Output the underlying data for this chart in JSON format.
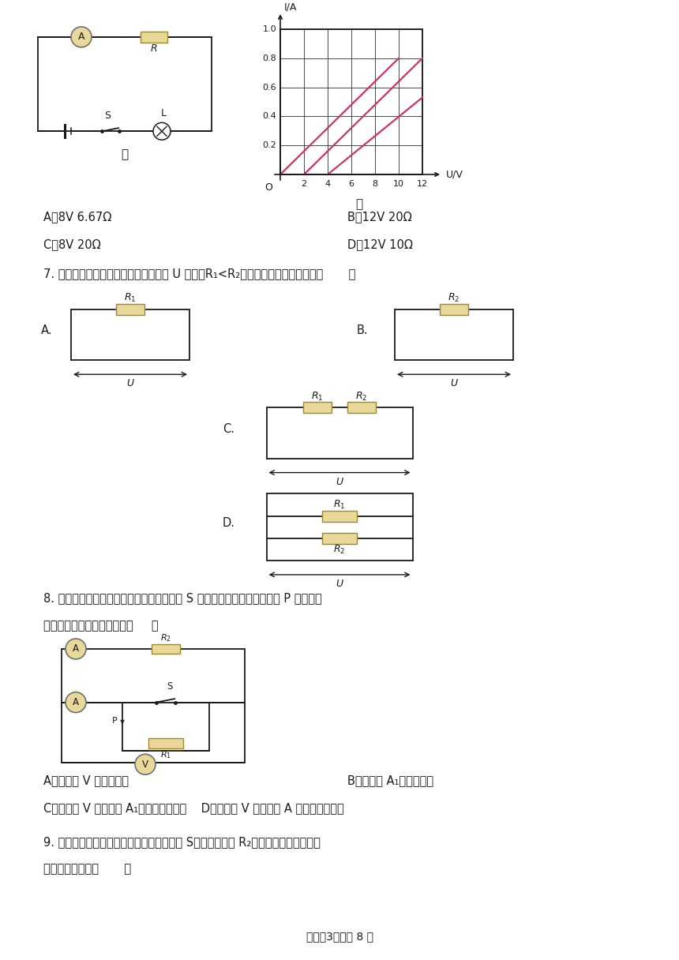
{
  "bg_color": "#ffffff",
  "text_color": "#1a1a1a",
  "line_color": "#1a1a1a",
  "resistor_fill": "#e8d89a",
  "resistor_edge": "#a08830",
  "meter_fill": "#e8d89a",
  "meter_edge": "#707070",
  "graph_line_color": "#cc3366",
  "opt_A_top": "A．8V 6.67Ω",
  "opt_B_top": "B．12V 20Ω",
  "opt_C_top": "C．8V 20Ω",
  "opt_D_top": "D．12V 10Ω",
  "q7_text": "7. 如图的所示的四个电路中，电源电压 U 相同，R₁<R₂，电路的总电阻最小的是（       ）",
  "q8_text1": "8. 如图所示电路，电源电压保持不变，开关 S 闭合后，在滑动变阻器滑片 P 向右移动",
  "q8_text2": "过程中，下列说法正确的是（     ）",
  "q8_optA": "A．电压表 V 的示数变大",
  "q8_optB": "B．电流表 A₁的示数变小",
  "q8_optC": "C．电压表 V 与电流表 A₁的示数之比不变    D．电压表 V 与电流表 A 的示数之比变小",
  "q9_text1": "9. 如图所示，电源电压保持不变，闭合开关 S，滑动变阻器 R₂的滑片向右移动时，下",
  "q9_text2": "列判断正确的是（       ）",
  "footer": "试卷第3页，共 8 页",
  "label_jia": "甲",
  "label_yi": "乙"
}
